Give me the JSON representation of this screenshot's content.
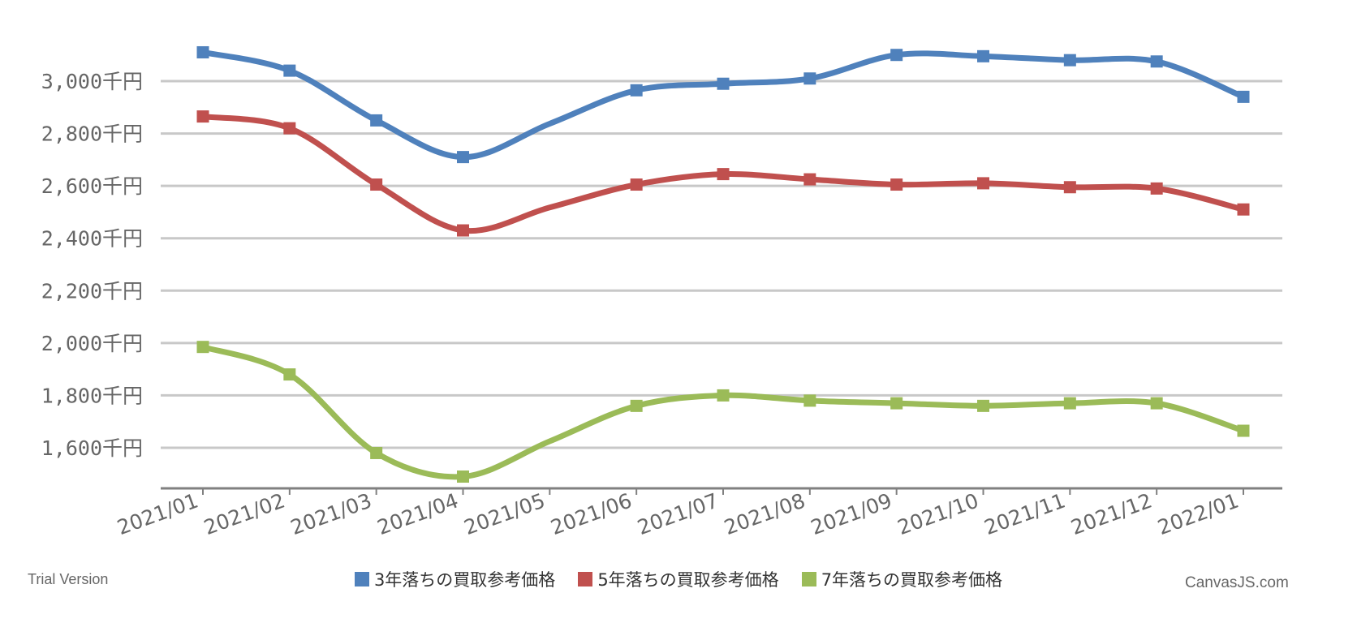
{
  "chart_data": {
    "type": "line",
    "title": "",
    "xlabel": "",
    "ylabel": "",
    "categories": [
      "2021/01",
      "2021/02",
      "2021/03",
      "2021/04",
      "2021/05",
      "2021/06",
      "2021/07",
      "2021/08",
      "2021/09",
      "2021/10",
      "2021/11",
      "2021/12",
      "2022/01"
    ],
    "y_ticks": [
      1600,
      1800,
      2000,
      2200,
      2400,
      2600,
      2800,
      3000
    ],
    "y_tick_suffix": "千円",
    "ylim": [
      1450,
      3150
    ],
    "grid": true,
    "legend_position": "bottom-center",
    "series": [
      {
        "name": "3年落ちの買取参考価格",
        "color": "#4f81bc",
        "values": [
          3110,
          3040,
          2850,
          2710,
          null,
          2965,
          2990,
          3010,
          3100,
          3095,
          3080,
          3075,
          2940
        ]
      },
      {
        "name": "5年落ちの買取参考価格",
        "color": "#c0504e",
        "values": [
          2865,
          2820,
          2605,
          2430,
          null,
          2605,
          2645,
          2625,
          2605,
          2610,
          2595,
          2590,
          2510
        ]
      },
      {
        "name": "7年落ちの買取参考価格",
        "color": "#9bbb58",
        "values": [
          1985,
          1880,
          1580,
          1490,
          null,
          1760,
          1800,
          1780,
          1770,
          1760,
          1770,
          1770,
          1665
        ]
      }
    ]
  },
  "footer": {
    "trial_text": "Trial Version",
    "credit_text": "CanvasJS.com"
  }
}
